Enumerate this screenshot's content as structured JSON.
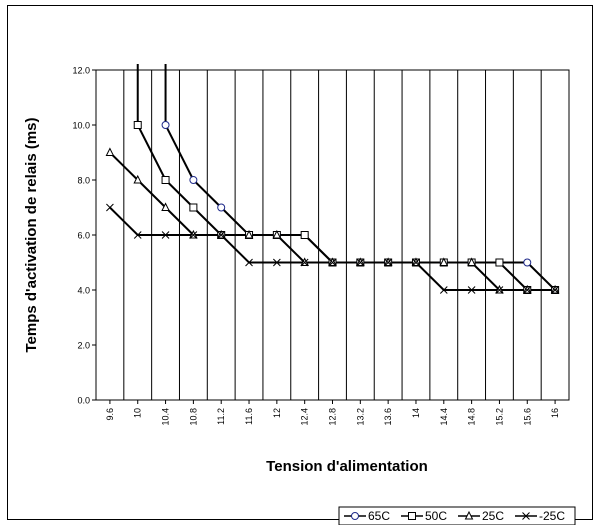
{
  "chart_data": {
    "type": "line",
    "title": "",
    "xlabel": "Tension d'alimentation",
    "ylabel": "Temps d'activation de relais (ms)",
    "categories": [
      "9.6",
      "10",
      "10.4",
      "10.8",
      "11.2",
      "11.6",
      "12",
      "12.4",
      "12.8",
      "13.2",
      "13.6",
      "14",
      "14.4",
      "14.8",
      "15.2",
      "15.6",
      "16"
    ],
    "ylim": [
      0,
      12
    ],
    "yticks": [
      "0.0",
      "2.0",
      "4.0",
      "6.0",
      "8.0",
      "10.0",
      "12.0"
    ],
    "grid": "vertical",
    "legend_position": "bottom-right",
    "series": [
      {
        "name": "65C",
        "marker": "circle",
        "marker_color": "#1f2a8a",
        "points": [
          [
            10.4,
            12.3
          ],
          [
            10.4,
            10
          ],
          [
            10.8,
            8
          ],
          [
            11.2,
            7
          ],
          [
            11.6,
            6
          ],
          [
            12,
            6
          ],
          [
            12.4,
            6
          ],
          [
            12.8,
            5
          ],
          [
            13.2,
            5
          ],
          [
            13.6,
            5
          ],
          [
            14,
            5
          ],
          [
            14.4,
            5
          ],
          [
            14.8,
            5
          ],
          [
            15.2,
            5
          ],
          [
            15.6,
            5
          ],
          [
            16,
            4
          ]
        ]
      },
      {
        "name": "50C",
        "marker": "square",
        "marker_color": "#000000",
        "points": [
          [
            10,
            12.3
          ],
          [
            10,
            10
          ],
          [
            10.4,
            8
          ],
          [
            10.8,
            7
          ],
          [
            11.2,
            6
          ],
          [
            11.6,
            6
          ],
          [
            12,
            6
          ],
          [
            12.4,
            6
          ],
          [
            12.8,
            5
          ],
          [
            13.2,
            5
          ],
          [
            13.6,
            5
          ],
          [
            14,
            5
          ],
          [
            14.4,
            5
          ],
          [
            14.8,
            5
          ],
          [
            15.2,
            5
          ],
          [
            15.6,
            4
          ],
          [
            16,
            4
          ]
        ]
      },
      {
        "name": "25C",
        "marker": "triangle",
        "marker_color": "#000000",
        "points": [
          [
            9.6,
            9
          ],
          [
            10,
            8
          ],
          [
            10.4,
            7
          ],
          [
            10.8,
            6
          ],
          [
            11.2,
            6
          ],
          [
            11.6,
            6
          ],
          [
            12,
            6
          ],
          [
            12.4,
            5
          ],
          [
            12.8,
            5
          ],
          [
            13.2,
            5
          ],
          [
            13.6,
            5
          ],
          [
            14,
            5
          ],
          [
            14.4,
            5
          ],
          [
            14.8,
            5
          ],
          [
            15.2,
            4
          ],
          [
            15.6,
            4
          ],
          [
            16,
            4
          ]
        ]
      },
      {
        "name": "-25C",
        "marker": "x",
        "marker_color": "#000000",
        "points": [
          [
            9.6,
            7
          ],
          [
            10,
            6
          ],
          [
            10.4,
            6
          ],
          [
            10.8,
            6
          ],
          [
            11.2,
            6
          ],
          [
            11.6,
            5
          ],
          [
            12,
            5
          ],
          [
            12.4,
            5
          ],
          [
            12.8,
            5
          ],
          [
            13.2,
            5
          ],
          [
            13.6,
            5
          ],
          [
            14,
            5
          ],
          [
            14.4,
            4
          ],
          [
            14.8,
            4
          ],
          [
            15.2,
            4
          ],
          [
            15.6,
            4
          ],
          [
            16,
            4
          ]
        ]
      }
    ]
  }
}
